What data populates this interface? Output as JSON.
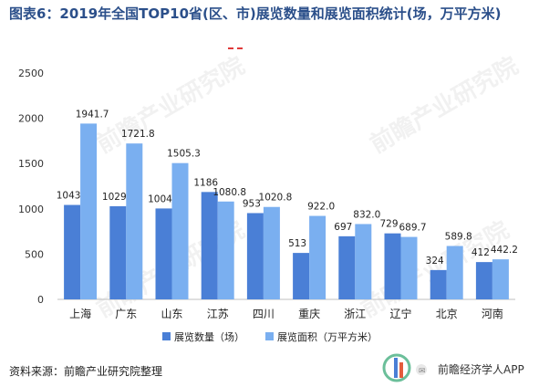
{
  "title": "图表6：2019年全国TOP10省(区、市)展览数量和展览面积统计(场，万平方米)",
  "source": "资料来源：前瞻产业研究院整理",
  "brand": "前瞻经济学人APP",
  "watermark": "前瞻产业研究院",
  "colors": {
    "series1": "#4a7fd6",
    "series2": "#7aaff0",
    "axis": "#bfbfbf",
    "title": "#2b4f8a"
  },
  "chart_data": {
    "type": "bar",
    "categories": [
      "上海",
      "广东",
      "山东",
      "江苏",
      "四川",
      "重庆",
      "浙江",
      "辽宁",
      "北京",
      "河南"
    ],
    "series": [
      {
        "name": "展览数量（场）",
        "values": [
          1043,
          1029,
          1004,
          1186,
          953,
          513,
          697,
          729,
          324,
          412
        ]
      },
      {
        "name": "展览面积（万平方米）",
        "values": [
          1941.7,
          1721.8,
          1505.3,
          1080.8,
          1020.8,
          922.0,
          832.0,
          689.7,
          589.8,
          442.2
        ]
      }
    ],
    "series_labels": [
      [
        "1043",
        "1029",
        "1004",
        "1186",
        "953",
        "513",
        "697",
        "729",
        "324",
        "412"
      ],
      [
        "1941.7",
        "1721.8",
        "1505.3",
        "1080.8",
        "1020.8",
        "922.0",
        "832.0",
        "689.7",
        "589.8",
        "442.2"
      ]
    ],
    "yticks": [
      "0",
      "500",
      "1000",
      "1500",
      "2000",
      "2500"
    ],
    "ylim": [
      0,
      2500
    ],
    "legend": "bottom",
    "grid": false
  }
}
